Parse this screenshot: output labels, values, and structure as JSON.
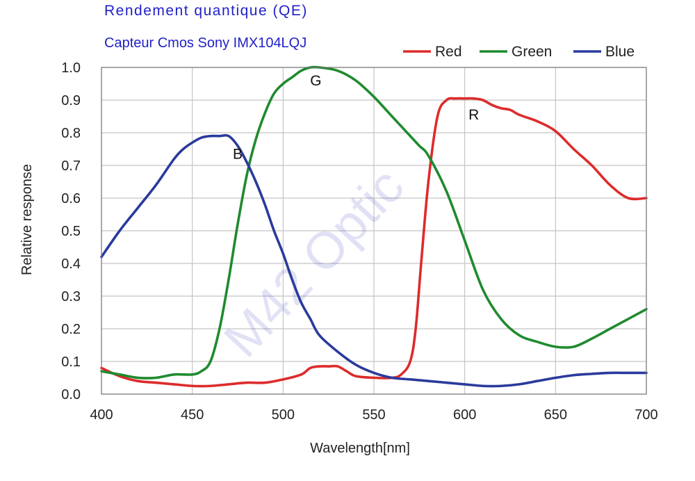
{
  "chart_data": {
    "type": "line",
    "title": "Rendement quantique (QE)",
    "subtitle": "Capteur Cmos Sony IMX104LQJ",
    "xlabel": "Wavelength[nm]",
    "ylabel": "Relative response",
    "xlim": [
      400,
      700
    ],
    "ylim": [
      0.0,
      1.0
    ],
    "xticks": [
      400,
      450,
      500,
      550,
      600,
      650,
      700
    ],
    "yticks": [
      "0.0",
      "0.1",
      "0.2",
      "0.3",
      "0.4",
      "0.5",
      "0.6",
      "0.7",
      "0.8",
      "0.9",
      "1.0"
    ],
    "grid": true,
    "legend_position": "top-right",
    "watermark": "M42 Optic",
    "series": [
      {
        "name": "Red",
        "label": "R",
        "color": "#dd2b2b",
        "x": [
          400,
          410,
          420,
          430,
          440,
          450,
          460,
          470,
          480,
          490,
          500,
          510,
          515,
          520,
          525,
          530,
          535,
          540,
          550,
          560,
          565,
          570,
          573,
          576,
          580,
          585,
          590,
          595,
          600,
          605,
          610,
          615,
          620,
          625,
          630,
          640,
          650,
          660,
          670,
          680,
          690,
          700
        ],
        "y": [
          0.08,
          0.055,
          0.04,
          0.035,
          0.03,
          0.025,
          0.025,
          0.03,
          0.035,
          0.035,
          0.045,
          0.06,
          0.08,
          0.085,
          0.085,
          0.085,
          0.07,
          0.055,
          0.05,
          0.05,
          0.06,
          0.1,
          0.2,
          0.4,
          0.65,
          0.85,
          0.9,
          0.905,
          0.905,
          0.905,
          0.9,
          0.885,
          0.875,
          0.87,
          0.855,
          0.835,
          0.805,
          0.75,
          0.7,
          0.64,
          0.6,
          0.6
        ]
      },
      {
        "name": "Green",
        "label": "G",
        "color": "#1f8a2e",
        "x": [
          400,
          410,
          420,
          430,
          440,
          450,
          455,
          460,
          465,
          470,
          475,
          480,
          485,
          490,
          495,
          500,
          505,
          510,
          515,
          520,
          530,
          540,
          550,
          560,
          570,
          575,
          580,
          590,
          600,
          610,
          620,
          630,
          640,
          650,
          660,
          670,
          680,
          690,
          700
        ],
        "y": [
          0.07,
          0.06,
          0.05,
          0.05,
          0.06,
          0.06,
          0.07,
          0.1,
          0.2,
          0.35,
          0.52,
          0.67,
          0.78,
          0.86,
          0.92,
          0.95,
          0.97,
          0.99,
          1.0,
          1.0,
          0.99,
          0.96,
          0.91,
          0.85,
          0.79,
          0.76,
          0.73,
          0.62,
          0.47,
          0.32,
          0.23,
          0.18,
          0.16,
          0.145,
          0.145,
          0.17,
          0.2,
          0.23,
          0.26
        ]
      },
      {
        "name": "Blue",
        "label": "B",
        "color": "#2a3a9c",
        "x": [
          400,
          410,
          420,
          430,
          440,
          445,
          450,
          455,
          460,
          465,
          470,
          475,
          480,
          485,
          490,
          495,
          500,
          505,
          510,
          515,
          520,
          530,
          540,
          550,
          560,
          570,
          580,
          590,
          600,
          610,
          620,
          630,
          640,
          650,
          660,
          670,
          680,
          690,
          700
        ],
        "y": [
          0.42,
          0.5,
          0.57,
          0.64,
          0.72,
          0.75,
          0.77,
          0.785,
          0.79,
          0.79,
          0.79,
          0.76,
          0.71,
          0.65,
          0.58,
          0.5,
          0.43,
          0.35,
          0.28,
          0.23,
          0.18,
          0.13,
          0.09,
          0.065,
          0.05,
          0.045,
          0.04,
          0.035,
          0.03,
          0.025,
          0.025,
          0.03,
          0.04,
          0.05,
          0.058,
          0.062,
          0.065,
          0.065,
          0.065
        ]
      }
    ]
  }
}
